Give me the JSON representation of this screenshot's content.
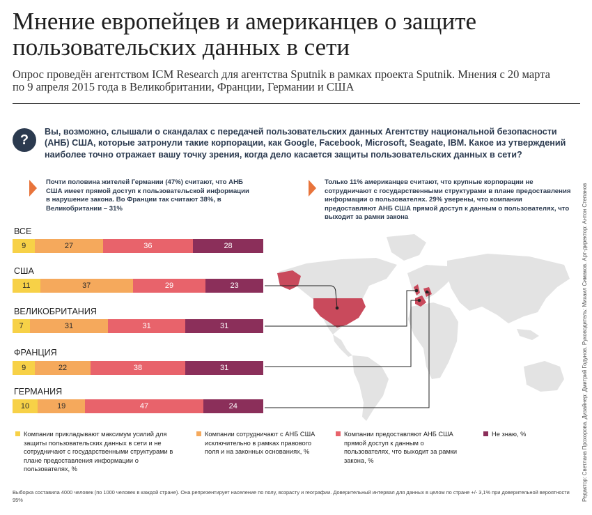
{
  "title": "Мнение европейцев и американцев о защите пользовательских данных в сети",
  "subtitle": "Опрос проведён агентством ICM Research для агентства Sputnik в рамках проекта Sputnik. Мнения с 20 марта по 9 апреля 2015 года в Великобритании, Франции, Германии и США",
  "question_icon": "?",
  "question": "Вы, возможно, слышали о скандалах с передачей пользовательских данных Агентству национальной безопасности (АНБ) США, которые затронули такие корпорации, как Google, Facebook, Microsoft, Seagate, IBM. Какое из утверждений наиболее точно отражает вашу точку зрения, когда дело касается защиты пользовательских данных в сети?",
  "note_left": "Почти половина жителей Германии (47%) считают, что АНБ США имеет прямой доступ к пользовательской информации в нарушение закона. Во Франции так считают 38%, в Великобритании – 31%",
  "note_right": "Только 11% американцев считают, что крупные корпорации не сотрудничают с государственными структурами в плане предоставления информации о пользователях. 29% уверены, что компании предоставляют АНБ США прямой доступ к данным о пользователях, что выходит за рамки закона",
  "colors": {
    "accent": "#e8743b",
    "navy": "#2b3a4f",
    "map_land": "#e3e3e3",
    "map_highlight": "#c94a5c"
  },
  "chart_data": {
    "type": "bar",
    "stacked": true,
    "orientation": "horizontal",
    "unit": "%",
    "categories": [
      "ВСЕ",
      "США",
      "ВЕЛИКОБРИТАНИЯ",
      "ФРАНЦИЯ",
      "ГЕРМАНИЯ"
    ],
    "series": [
      {
        "name": "Компании прикладывают максимум усилий для защиты пользовательских данных в сети и не сотрудничают с государственными структурами в плане предоставления информации о пользователях, %",
        "color": "#f7d147",
        "values": [
          9,
          11,
          7,
          9,
          10
        ]
      },
      {
        "name": "Компании сотрудничают с АНБ США исключительно в рамках правового поля и на законных основаниях, %",
        "color": "#f5a95c",
        "values": [
          27,
          37,
          31,
          22,
          19
        ]
      },
      {
        "name": "Компании предоставляют АНБ США прямой доступ к данным о пользователях, что выходит за рамки закона, %",
        "color": "#e8636b",
        "values": [
          36,
          29,
          31,
          38,
          47
        ]
      },
      {
        "name": "Не знаю, %",
        "color": "#8b2f5a",
        "values": [
          28,
          23,
          31,
          31,
          24
        ]
      }
    ],
    "legend_position": "bottom"
  },
  "footnote": "Выборка составила 4000 человек (по 1000 человек в каждой стране). Она репрезентирует население по полу, возрасту и географии. Доверительный интервал для данных в целом по стране +/- 3,1% при доверительной вероятности 95%",
  "credits": "Редактор: Светлана Прохорова. Дизайнер: Дмитрий Годунов. Руководитель: Михаил Симаков. Арт-директор: Антон Степанов"
}
